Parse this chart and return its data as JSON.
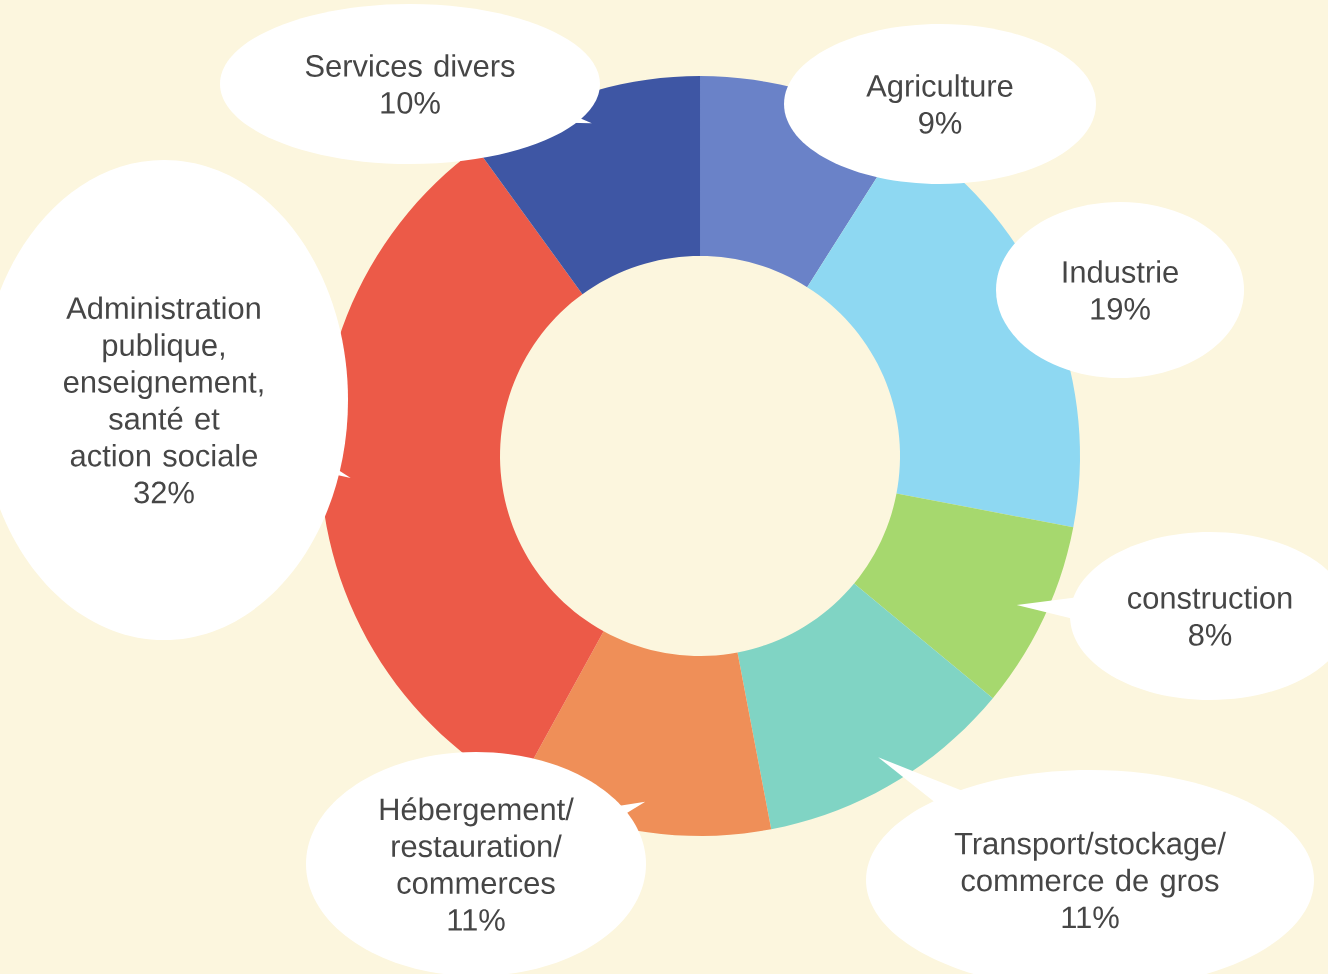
{
  "chart_data": {
    "type": "donut",
    "categories": [
      "Agriculture",
      "Industrie",
      "construction",
      "Transport/stockage/ commerce de gros",
      "Hébergement/ restauration/ commerces",
      "Administration publique, enseignement, santé et action sociale",
      "Services divers"
    ],
    "values": [
      9,
      19,
      8,
      11,
      11,
      32,
      10
    ],
    "value_labels": [
      "9%",
      "19%",
      "8%",
      "11%",
      "11%",
      "32%",
      "10%"
    ],
    "colors": [
      "#6a82c8",
      "#8ed8f2",
      "#a6d86e",
      "#80d4c4",
      "#ef8f58",
      "#ec5a48",
      "#3e56a4"
    ]
  }
}
